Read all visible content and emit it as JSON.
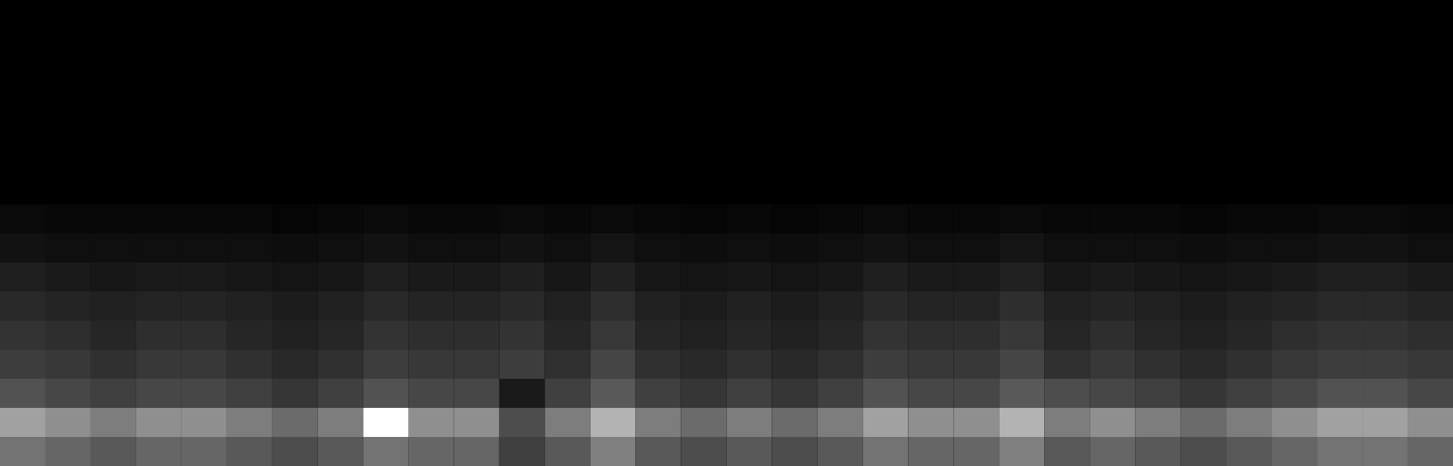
{
  "chart_data": {
    "type": "heatmap",
    "tick_labels": false,
    "color": "#ffffff",
    "cells": [
      [
        0,
        0,
        0,
        0,
        0,
        0,
        0,
        0,
        0,
        0,
        0,
        0,
        0,
        0,
        0,
        0,
        0,
        0,
        0,
        0,
        0,
        0,
        0,
        0,
        0,
        0,
        0,
        0,
        0,
        0,
        0,
        0
      ],
      [
        0,
        0,
        0,
        0,
        0,
        0,
        0,
        0,
        0,
        0,
        0,
        0,
        0,
        0,
        0,
        0,
        0,
        0,
        0,
        0,
        0,
        0,
        0,
        0,
        0,
        0,
        0,
        0,
        0,
        0,
        0,
        0
      ],
      [
        0,
        0,
        0,
        0,
        0,
        0,
        0,
        0,
        0,
        0,
        0,
        0,
        0,
        0,
        0,
        0,
        0,
        0,
        0,
        0,
        0,
        0,
        0,
        0,
        0,
        0,
        0,
        0,
        0,
        0,
        0,
        0
      ],
      [
        0,
        0,
        0,
        0,
        0,
        0,
        0,
        0,
        0,
        0,
        0,
        0,
        0,
        0,
        0,
        0,
        0,
        0,
        0,
        0,
        0,
        0,
        0,
        0,
        0,
        0,
        0,
        0,
        0,
        0,
        0,
        0
      ],
      [
        0,
        0,
        0,
        0,
        0,
        0,
        0,
        0,
        0,
        0,
        0,
        0,
        0,
        0,
        0,
        0,
        0,
        0,
        0,
        0,
        0,
        0,
        0,
        0,
        0,
        0,
        0,
        0,
        0,
        0,
        0,
        0
      ],
      [
        0,
        0,
        0,
        0,
        0,
        0,
        0,
        0,
        0,
        0,
        0,
        0,
        0,
        0,
        0,
        0,
        0,
        0,
        0,
        0,
        0,
        0,
        0,
        0,
        0,
        0,
        0,
        0,
        0,
        0,
        0,
        0
      ],
      [
        0,
        0,
        0,
        0,
        0,
        0,
        0,
        0,
        0,
        0,
        0,
        0,
        0,
        0,
        0,
        0,
        0,
        0,
        0,
        0,
        0,
        0,
        0,
        0,
        0,
        0,
        0,
        0,
        0,
        0,
        0,
        0
      ],
      [
        0.04,
        0.03,
        0.03,
        0.03,
        0.03,
        0.03,
        0.02,
        0.03,
        0.04,
        0.03,
        0.03,
        0.04,
        0.03,
        0.04,
        0.03,
        0.02,
        0.03,
        0.02,
        0.03,
        0.04,
        0.03,
        0.03,
        0.04,
        0.03,
        0.03,
        0.03,
        0.02,
        0.03,
        0.03,
        0.04,
        0.04,
        0.03
      ],
      [
        0.07,
        0.06,
        0.06,
        0.06,
        0.06,
        0.06,
        0.05,
        0.06,
        0.07,
        0.06,
        0.06,
        0.07,
        0.06,
        0.08,
        0.06,
        0.05,
        0.06,
        0.05,
        0.06,
        0.07,
        0.06,
        0.06,
        0.08,
        0.06,
        0.06,
        0.06,
        0.05,
        0.06,
        0.06,
        0.07,
        0.07,
        0.06
      ],
      [
        0.12,
        0.1,
        0.09,
        0.1,
        0.1,
        0.09,
        0.08,
        0.09,
        0.12,
        0.1,
        0.1,
        0.12,
        0.09,
        0.13,
        0.09,
        0.08,
        0.09,
        0.08,
        0.09,
        0.12,
        0.1,
        0.1,
        0.13,
        0.09,
        0.1,
        0.09,
        0.08,
        0.09,
        0.1,
        0.12,
        0.12,
        0.1
      ],
      [
        0.16,
        0.14,
        0.13,
        0.14,
        0.14,
        0.13,
        0.11,
        0.13,
        0.16,
        0.14,
        0.14,
        0.16,
        0.13,
        0.18,
        0.13,
        0.11,
        0.13,
        0.11,
        0.13,
        0.16,
        0.14,
        0.14,
        0.18,
        0.13,
        0.14,
        0.13,
        0.11,
        0.13,
        0.14,
        0.16,
        0.16,
        0.14
      ],
      [
        0.2,
        0.18,
        0.15,
        0.18,
        0.18,
        0.15,
        0.13,
        0.15,
        0.2,
        0.18,
        0.18,
        0.2,
        0.15,
        0.22,
        0.15,
        0.13,
        0.15,
        0.13,
        0.15,
        0.2,
        0.18,
        0.18,
        0.22,
        0.15,
        0.18,
        0.15,
        0.13,
        0.15,
        0.18,
        0.2,
        0.2,
        0.18
      ],
      [
        0.24,
        0.22,
        0.19,
        0.22,
        0.22,
        0.19,
        0.16,
        0.19,
        0.24,
        0.22,
        0.22,
        0.24,
        0.19,
        0.27,
        0.19,
        0.16,
        0.19,
        0.16,
        0.19,
        0.24,
        0.22,
        0.22,
        0.27,
        0.19,
        0.22,
        0.19,
        0.16,
        0.19,
        0.22,
        0.24,
        0.24,
        0.22
      ],
      [
        0.32,
        0.28,
        0.25,
        0.28,
        0.28,
        0.25,
        0.21,
        0.25,
        0.32,
        0.28,
        0.28,
        0.1,
        0.25,
        0.35,
        0.25,
        0.21,
        0.25,
        0.21,
        0.25,
        0.32,
        0.28,
        0.28,
        0.35,
        0.3,
        0.28,
        0.25,
        0.21,
        0.25,
        0.28,
        0.32,
        0.32,
        0.28
      ],
      [
        0.63,
        0.56,
        0.49,
        0.56,
        0.56,
        0.49,
        0.42,
        0.49,
        1.0,
        0.56,
        0.56,
        0.3,
        0.49,
        0.7,
        0.49,
        0.42,
        0.49,
        0.42,
        0.49,
        0.63,
        0.56,
        0.56,
        0.7,
        0.49,
        0.56,
        0.49,
        0.42,
        0.49,
        0.56,
        0.63,
        0.63,
        0.56
      ],
      [
        0.45,
        0.4,
        0.35,
        0.4,
        0.4,
        0.35,
        0.3,
        0.35,
        0.45,
        0.4,
        0.4,
        0.25,
        0.35,
        0.5,
        0.35,
        0.3,
        0.35,
        0.3,
        0.35,
        0.45,
        0.4,
        0.4,
        0.5,
        0.35,
        0.4,
        0.35,
        0.3,
        0.35,
        0.4,
        0.45,
        0.45,
        0.4
      ]
    ]
  }
}
